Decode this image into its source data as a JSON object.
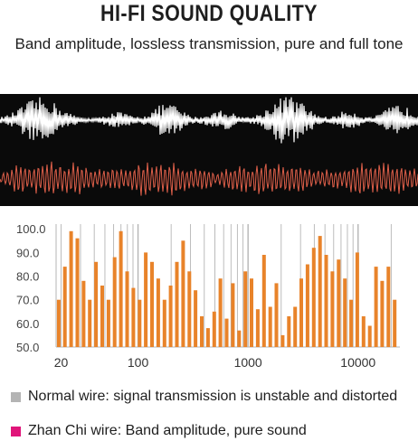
{
  "header": {
    "title": "HI-FI SOUND QUALITY",
    "subtitle": "Band amplitude, lossless transmission, pure and full tone"
  },
  "waveform": {
    "background": "#0a0a0a",
    "top_color": "#ffffff",
    "bottom_color": "#e0604a"
  },
  "chart_data": {
    "type": "bar",
    "x_scale": "log",
    "xlim": [
      18,
      24000
    ],
    "x_ticks": [
      {
        "value": 20,
        "label": "20"
      },
      {
        "value": 100,
        "label": "100"
      },
      {
        "value": 1000,
        "label": "1000"
      },
      {
        "value": 10000,
        "label": "10000"
      }
    ],
    "ylim": [
      50,
      102
    ],
    "y_ticks": [
      {
        "value": 100,
        "label": "100.0"
      },
      {
        "value": 90,
        "label": "90.0"
      },
      {
        "value": 80,
        "label": "80.0"
      },
      {
        "value": 70,
        "label": "70.0"
      },
      {
        "value": 60,
        "label": "60.0"
      },
      {
        "value": 50,
        "label": "50.0"
      }
    ],
    "grid": "vertical-log",
    "bar_color": "#e8832a",
    "grid_color": "#b5b5b5",
    "values": [
      70,
      84,
      99,
      96,
      78,
      70,
      86,
      76,
      70,
      88,
      99,
      82,
      75,
      70,
      90,
      86,
      79,
      70,
      76,
      86,
      95,
      82,
      74,
      63,
      58,
      65,
      79,
      62,
      77,
      57,
      82,
      79,
      66,
      89,
      67,
      77,
      55,
      63,
      67,
      79,
      85,
      92,
      97,
      89,
      82,
      87,
      79,
      70,
      90,
      63,
      59,
      84,
      78,
      84,
      70
    ]
  },
  "legend": [
    {
      "label": "Normal wire: signal transmission is unstable and distorted",
      "color": "#b4b4b4"
    },
    {
      "label": "Zhan Chi wire: Band amplitude, pure sound",
      "color": "#e0157a"
    }
  ]
}
